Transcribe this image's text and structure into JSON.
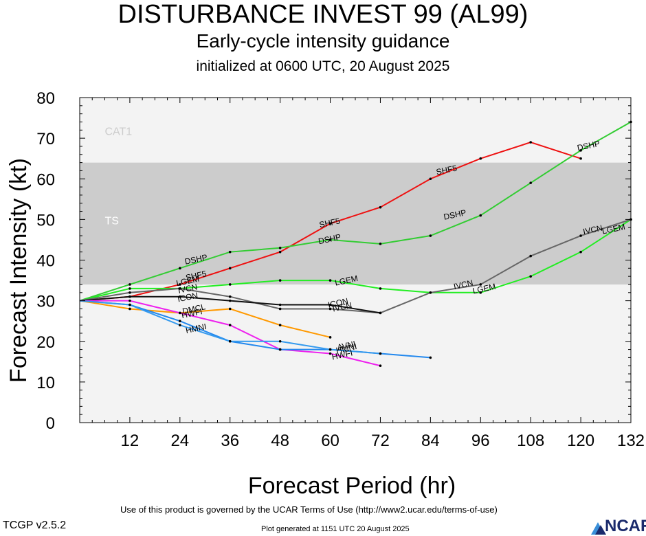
{
  "header": {
    "title": "DISTURBANCE INVEST 99 (AL99)",
    "subtitle": "Early-cycle intensity guidance",
    "init": "initialized at 0600 UTC, 20 August 2025"
  },
  "footer": {
    "terms": "Use of this product is governed by the UCAR Terms of Use (http://www2.ucar.edu/terms-of-use)",
    "generated": "Plot generated at 1151 UTC   20 August 2025",
    "version": "TCGP v2.5.2",
    "logo": "NCAR"
  },
  "chart_data": {
    "type": "line",
    "xlabel": "Forecast Period (hr)",
    "ylabel": "Forecast Intensity (kt)",
    "xlim": [
      0,
      132
    ],
    "ylim": [
      0,
      80
    ],
    "xticks": [
      12,
      24,
      36,
      48,
      60,
      72,
      84,
      96,
      108,
      120,
      132
    ],
    "yticks": [
      0,
      10,
      20,
      30,
      40,
      50,
      60,
      70,
      80
    ],
    "bands": [
      {
        "label": "TS",
        "from": 34,
        "to": 64,
        "color": "#cccccc"
      },
      {
        "label": "CAT1",
        "from": 64,
        "to": 80,
        "color": "#f3f3f3"
      }
    ],
    "background_color": "#f3f3f3",
    "series": [
      {
        "name": "SHF5",
        "color": "#ee1111",
        "points": [
          [
            0,
            30
          ],
          [
            12,
            31
          ],
          [
            24,
            34
          ],
          [
            36,
            38
          ],
          [
            48,
            42
          ],
          [
            60,
            49
          ],
          [
            72,
            53
          ],
          [
            84,
            60
          ],
          [
            96,
            65
          ],
          [
            108,
            69
          ],
          [
            120,
            65
          ]
        ],
        "labels": [
          [
            28,
            35.5
          ],
          [
            60,
            48.5
          ],
          [
            88,
            61.5
          ]
        ]
      },
      {
        "name": "DSHP",
        "color": "#33cc33",
        "points": [
          [
            0,
            30
          ],
          [
            12,
            34
          ],
          [
            24,
            38
          ],
          [
            36,
            42
          ],
          [
            48,
            43
          ],
          [
            60,
            45
          ],
          [
            72,
            44
          ],
          [
            84,
            46
          ],
          [
            96,
            51
          ],
          [
            108,
            59
          ],
          [
            120,
            67
          ],
          [
            132,
            74
          ]
        ],
        "labels": [
          [
            28,
            39.5
          ],
          [
            60,
            44.5
          ],
          [
            90,
            50.5
          ],
          [
            122,
            67.5
          ]
        ]
      },
      {
        "name": "LGEM",
        "color": "#22ee22",
        "points": [
          [
            0,
            30
          ],
          [
            12,
            33
          ],
          [
            24,
            33
          ],
          [
            36,
            34
          ],
          [
            48,
            35
          ],
          [
            60,
            35
          ],
          [
            72,
            33
          ],
          [
            84,
            32
          ],
          [
            96,
            32
          ],
          [
            108,
            36
          ],
          [
            120,
            42
          ],
          [
            132,
            50
          ]
        ],
        "labels": [
          [
            26,
            34.2
          ],
          [
            64,
            34.3
          ],
          [
            97,
            32.3
          ],
          [
            128,
            47
          ]
        ]
      },
      {
        "name": "IVCN",
        "color": "#666666",
        "points": [
          [
            0,
            30
          ],
          [
            12,
            32
          ],
          [
            24,
            33
          ],
          [
            36,
            31
          ],
          [
            48,
            28
          ],
          [
            60,
            28
          ],
          [
            72,
            27
          ],
          [
            84,
            32
          ],
          [
            96,
            34
          ],
          [
            108,
            41
          ],
          [
            120,
            46
          ],
          [
            132,
            50
          ]
        ],
        "labels": [
          [
            26,
            32.3
          ],
          [
            63,
            27.8
          ],
          [
            92,
            33.3
          ],
          [
            123,
            46.8
          ]
        ]
      },
      {
        "name": "ICON",
        "color": "#111111",
        "points": [
          [
            0,
            30
          ],
          [
            12,
            31
          ],
          [
            24,
            31
          ],
          [
            36,
            30
          ],
          [
            48,
            29
          ],
          [
            60,
            29
          ],
          [
            72,
            27
          ]
        ],
        "labels": [
          [
            26,
            30.2
          ],
          [
            62,
            28.8
          ]
        ]
      },
      {
        "name": "DMCL",
        "color": "#ff9900",
        "points": [
          [
            0,
            30
          ],
          [
            12,
            28
          ],
          [
            24,
            27
          ],
          [
            36,
            28
          ],
          [
            48,
            24
          ],
          [
            60,
            21
          ]
        ],
        "labels": [
          [
            27.5,
            27.3
          ]
        ]
      },
      {
        "name": "HWFI",
        "color": "#ee22ee",
        "points": [
          [
            0,
            30
          ],
          [
            12,
            30
          ],
          [
            24,
            27
          ],
          [
            36,
            24
          ],
          [
            48,
            18
          ],
          [
            60,
            17
          ],
          [
            72,
            14
          ]
        ],
        "labels": [
          [
            27,
            26.2
          ],
          [
            63,
            16
          ]
        ]
      },
      {
        "name": "AVNI",
        "color": "#2288ee",
        "points": [
          [
            0,
            30
          ],
          [
            12,
            29
          ],
          [
            24,
            25
          ],
          [
            36,
            20
          ],
          [
            48,
            18
          ],
          [
            60,
            18
          ],
          [
            72,
            17
          ],
          [
            84,
            16
          ]
        ],
        "labels": [
          [
            64,
            18.3
          ]
        ]
      },
      {
        "name": "HMNI",
        "color": "#3399ee",
        "points": [
          [
            0,
            30
          ],
          [
            12,
            29
          ],
          [
            24,
            24
          ],
          [
            36,
            20
          ],
          [
            48,
            20
          ],
          [
            60,
            18
          ],
          [
            72,
            17
          ]
        ],
        "labels": [
          [
            28,
            22.5
          ],
          [
            64,
            17.6
          ]
        ]
      }
    ]
  }
}
